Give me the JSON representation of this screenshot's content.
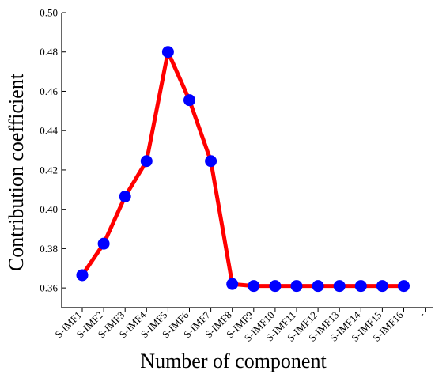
{
  "chart_data": {
    "type": "line",
    "title": "",
    "xlabel": "Number of component",
    "ylabel": "Contribution coefficient",
    "categories": [
      "S-IMF1",
      "S-IMF2",
      "S-IMF3",
      "S-IMF4",
      "S-IMF5",
      "S-IMF6",
      "S-IMF7",
      "S-IMF8",
      "S-IMF9",
      "S-IMF10",
      "S-IMF11",
      "S-IMF12",
      "S-IMF13",
      "S-IMF14",
      "S-IMF15",
      "S-IMF16"
    ],
    "extra_x_tick_label": "-",
    "series": [
      {
        "values": [
          0.3665,
          0.3825,
          0.4065,
          0.4245,
          0.48,
          0.4555,
          0.4245,
          0.362,
          0.361,
          0.361,
          0.361,
          0.361,
          0.361,
          0.361,
          0.361,
          0.361
        ],
        "line_color": "#ff0000",
        "marker_color": "#0000ff"
      }
    ],
    "ylim": [
      0.35,
      0.5
    ],
    "yticks": [
      "0.36",
      "0.38",
      "0.40",
      "0.42",
      "0.44",
      "0.46",
      "0.48",
      "0.50"
    ],
    "grid": false,
    "legend": "none"
  }
}
